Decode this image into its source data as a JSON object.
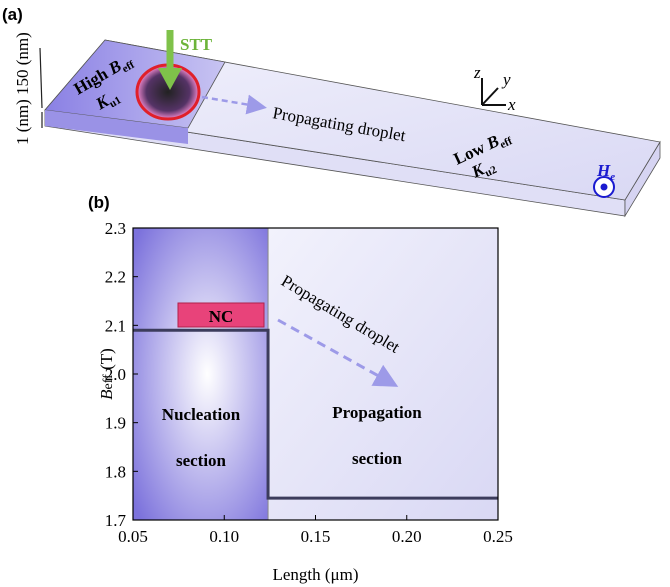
{
  "panel_a": {
    "label": "(a)",
    "stt": "STT",
    "width_label": "150 (nm)",
    "thickness_label": "1 (nm)",
    "high_region": {
      "text": "High",
      "symbol": "B",
      "subscript": "eff",
      "k_symbol": "K",
      "k_subscript": "u1"
    },
    "propagating": "Propagating droplet",
    "low_region": {
      "text": "Low",
      "symbol": "B",
      "subscript": "eff",
      "k_symbol": "K",
      "k_subscript": "u2"
    },
    "axes": {
      "z": "z",
      "y": "y",
      "x": "x"
    },
    "field": {
      "symbol": "H",
      "subscript": "e"
    }
  },
  "chart_data": {
    "type": "line",
    "panel_label": "(b)",
    "xlabel": "Length (μm)",
    "ylabel": {
      "symbol": "B",
      "subscript": "eff",
      "unit": "(T)"
    },
    "x": [
      0.05,
      0.124,
      0.124,
      0.25
    ],
    "values": [
      2.09,
      2.09,
      1.745,
      1.745
    ],
    "color": "#3c3c5c",
    "xlim": [
      0.05,
      0.25
    ],
    "ylim": [
      1.7,
      2.3
    ],
    "xticks": [
      0.05,
      {
        "value": 0.1,
        "label": "0.10"
      },
      0.15,
      {
        "value": 0.2,
        "label": "0.20"
      },
      0.25
    ],
    "yticks": [
      1.7,
      1.8,
      1.9,
      {
        "value": 2,
        "label": "2.0"
      },
      2.1,
      2.2,
      2.3
    ],
    "nc_label": "NC",
    "arrow_label": "Propagating droplet",
    "left_section": [
      "Nucleation",
      "section"
    ],
    "right_section": [
      "Propagation",
      "section"
    ]
  }
}
